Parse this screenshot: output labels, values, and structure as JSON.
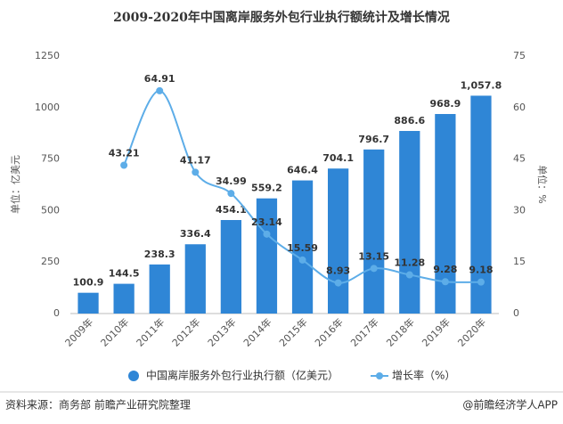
{
  "chart_data": {
    "type": "bar",
    "title": "2009-2020年中国离岸服务外包行业执行额统计及增长情况",
    "y_label": "单位：亿美元",
    "y2_label": "单位：%",
    "categories": [
      "2009年",
      "2010年",
      "2011年",
      "2012年",
      "2013年",
      "2014年",
      "2015年",
      "2016年",
      "2017年",
      "2018年",
      "2019年",
      "2020年"
    ],
    "series": [
      {
        "name": "中国离岸服务外包行业执行额（亿美元）",
        "color": "#2f86d6",
        "type": "bar",
        "values": [
          100.9,
          144.5,
          238.3,
          336.4,
          454.1,
          559.2,
          646.4,
          704.1,
          796.7,
          886.6,
          968.9,
          1057.8
        ],
        "value_labels": [
          "100.9",
          "144.5",
          "238.3",
          "336.4",
          "454.1",
          "559.2",
          "646.4",
          "704.1",
          "796.7",
          "886.6",
          "968.9",
          "1,057.8"
        ]
      },
      {
        "name": "增长率（%）",
        "color": "#5dade8",
        "type": "line",
        "axis": "y2",
        "values": [
          null,
          43.21,
          64.91,
          41.17,
          34.99,
          23.14,
          15.59,
          8.93,
          13.15,
          11.28,
          9.28,
          9.18
        ]
      }
    ],
    "ylim": [
      0,
      1250
    ],
    "yticks": [
      0,
      250,
      500,
      750,
      1000,
      1250
    ],
    "y2lim": [
      0,
      75
    ],
    "y2ticks": [
      0,
      15,
      30,
      45,
      60,
      75
    ],
    "source": "资料来源：商务部 前瞻产业研究院整理",
    "credit": "@前瞻经济学人APP"
  }
}
